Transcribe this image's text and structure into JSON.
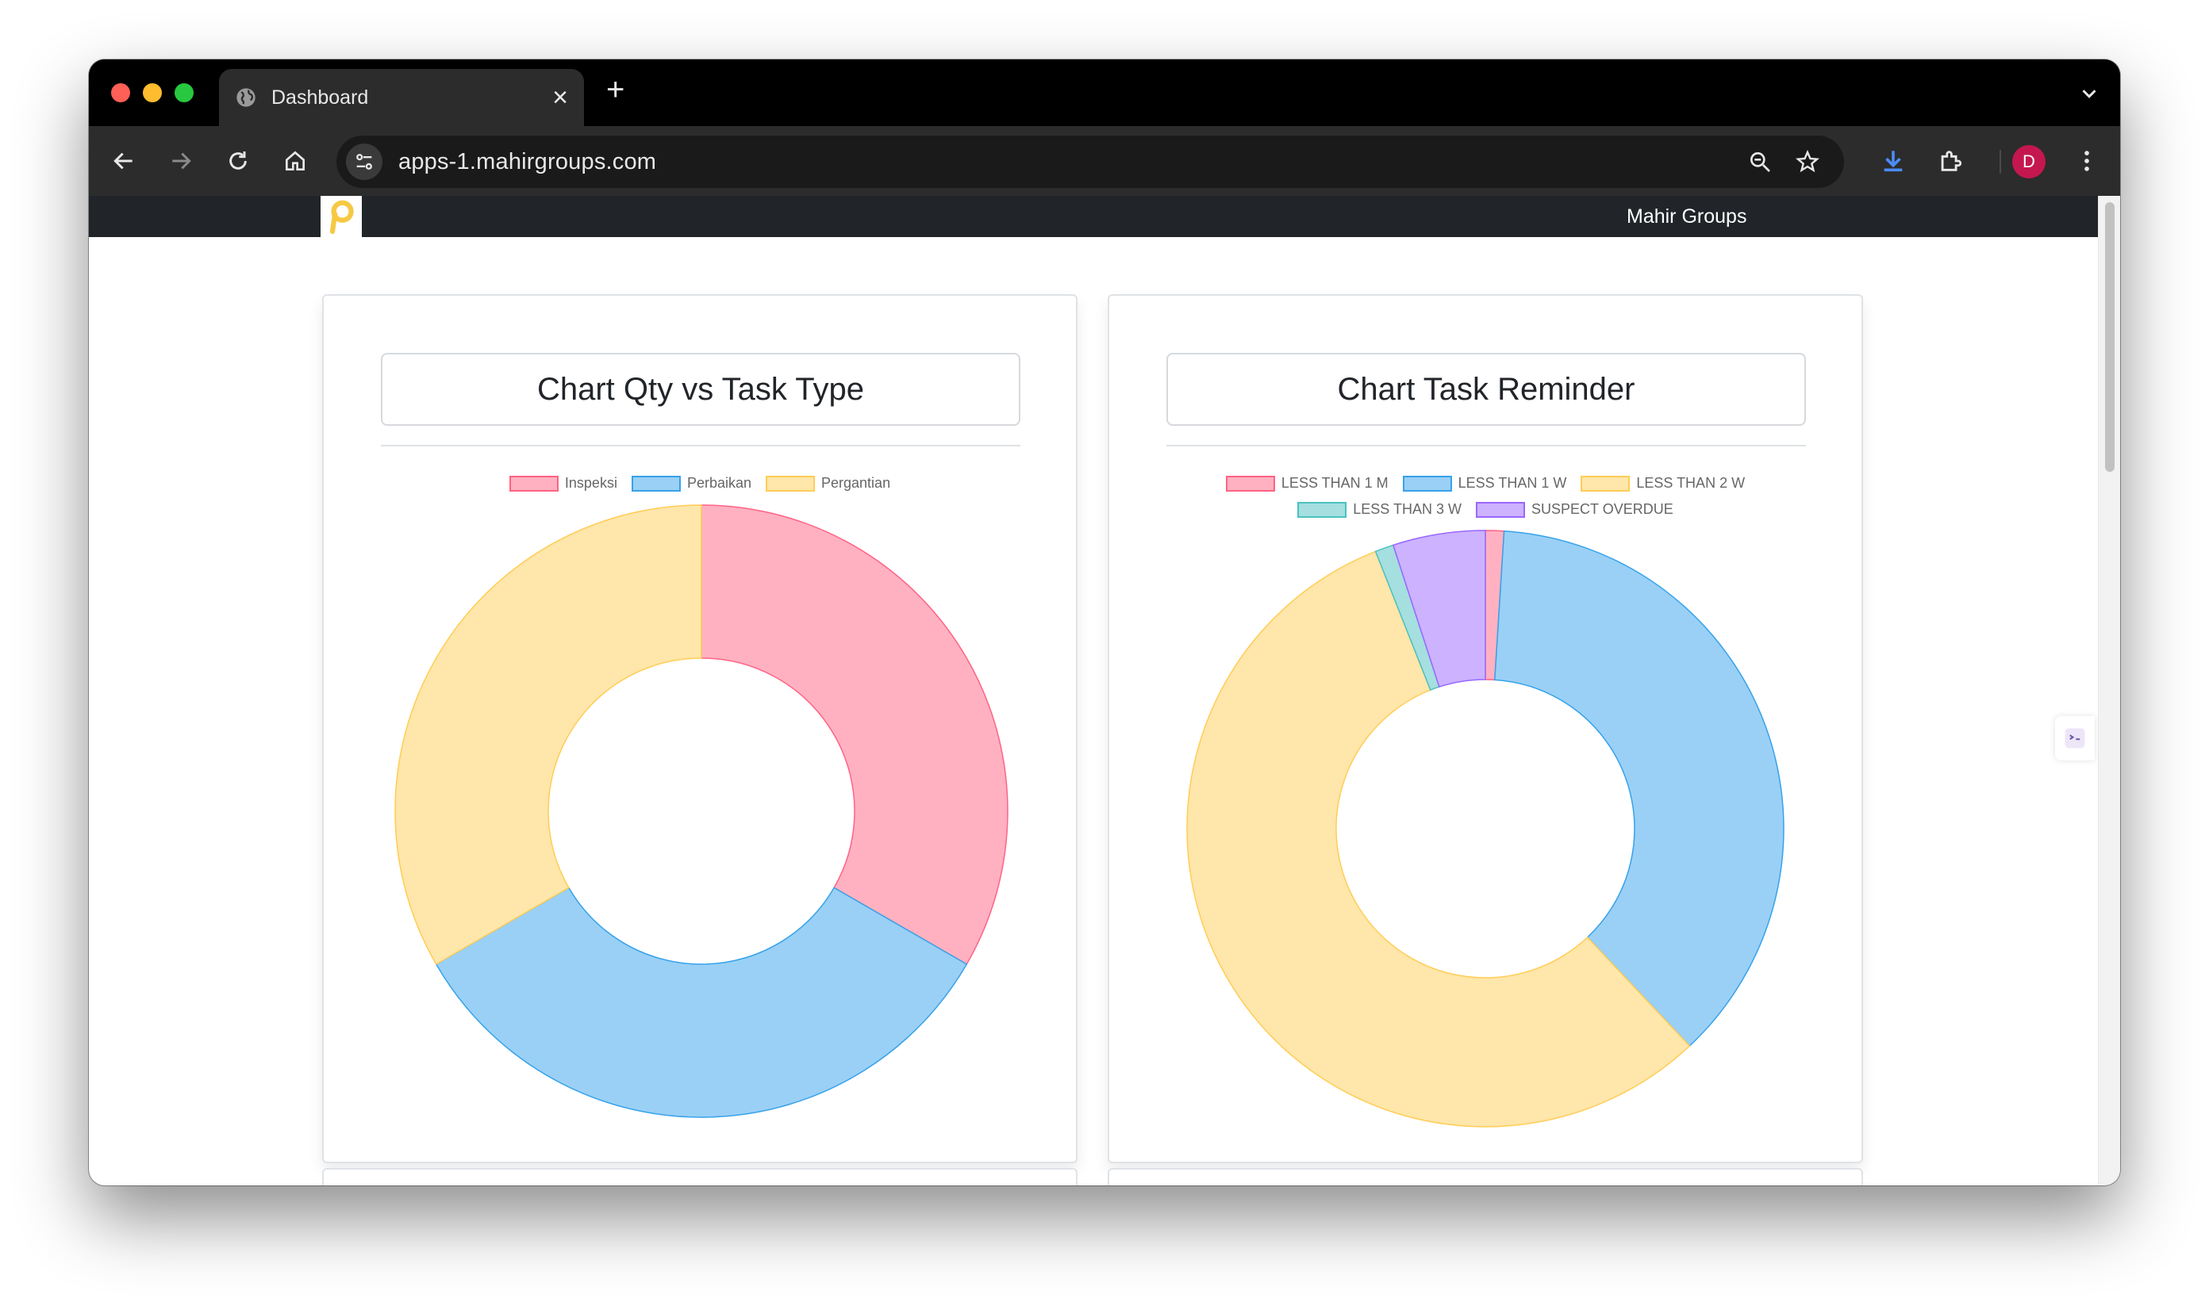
{
  "browser": {
    "tab_title": "Dashboard",
    "url": "apps-1.mahirgroups.com",
    "profile_initial": "D"
  },
  "navbar": {
    "brand": "Mahir Groups"
  },
  "colors": {
    "pink": "#ffb1c1",
    "pink_border": "#ff6384",
    "blue": "#9ad0f5",
    "blue_border": "#36a2eb",
    "yellow": "#ffe6aa",
    "yellow_border": "#ffcd56",
    "teal": "#a5dfdf",
    "teal_border": "#4bc0c0",
    "purple": "#ccb2ff",
    "purple_border": "#9966ff"
  },
  "cards": [
    {
      "title": "Chart Qty vs Task Type"
    },
    {
      "title": "Chart Task Reminder"
    }
  ],
  "chart_data": [
    {
      "type": "pie",
      "variant": "doughnut",
      "title": "Chart Qty vs Task Type",
      "legend_position": "top",
      "categories": [
        "Inspeksi",
        "Perbaikan",
        "Pergantian"
      ],
      "values": [
        1,
        1,
        1
      ],
      "colors": [
        "#ffb1c1",
        "#9ad0f5",
        "#ffe6aa"
      ],
      "borders": [
        "#ff6384",
        "#36a2eb",
        "#ffcd56"
      ]
    },
    {
      "type": "pie",
      "variant": "doughnut",
      "title": "Chart Task Reminder",
      "legend_position": "top",
      "categories": [
        "LESS THAN 1 M",
        "LESS THAN 1 W",
        "LESS THAN 2 W",
        "LESS THAN 3 W",
        "SUSPECT OVERDUE"
      ],
      "values": [
        1,
        37,
        56,
        1,
        5
      ],
      "colors": [
        "#ffb1c1",
        "#9ad0f5",
        "#ffe6aa",
        "#a5dfdf",
        "#ccb2ff"
      ],
      "borders": [
        "#ff6384",
        "#36a2eb",
        "#ffcd56",
        "#4bc0c0",
        "#9966ff"
      ]
    }
  ]
}
